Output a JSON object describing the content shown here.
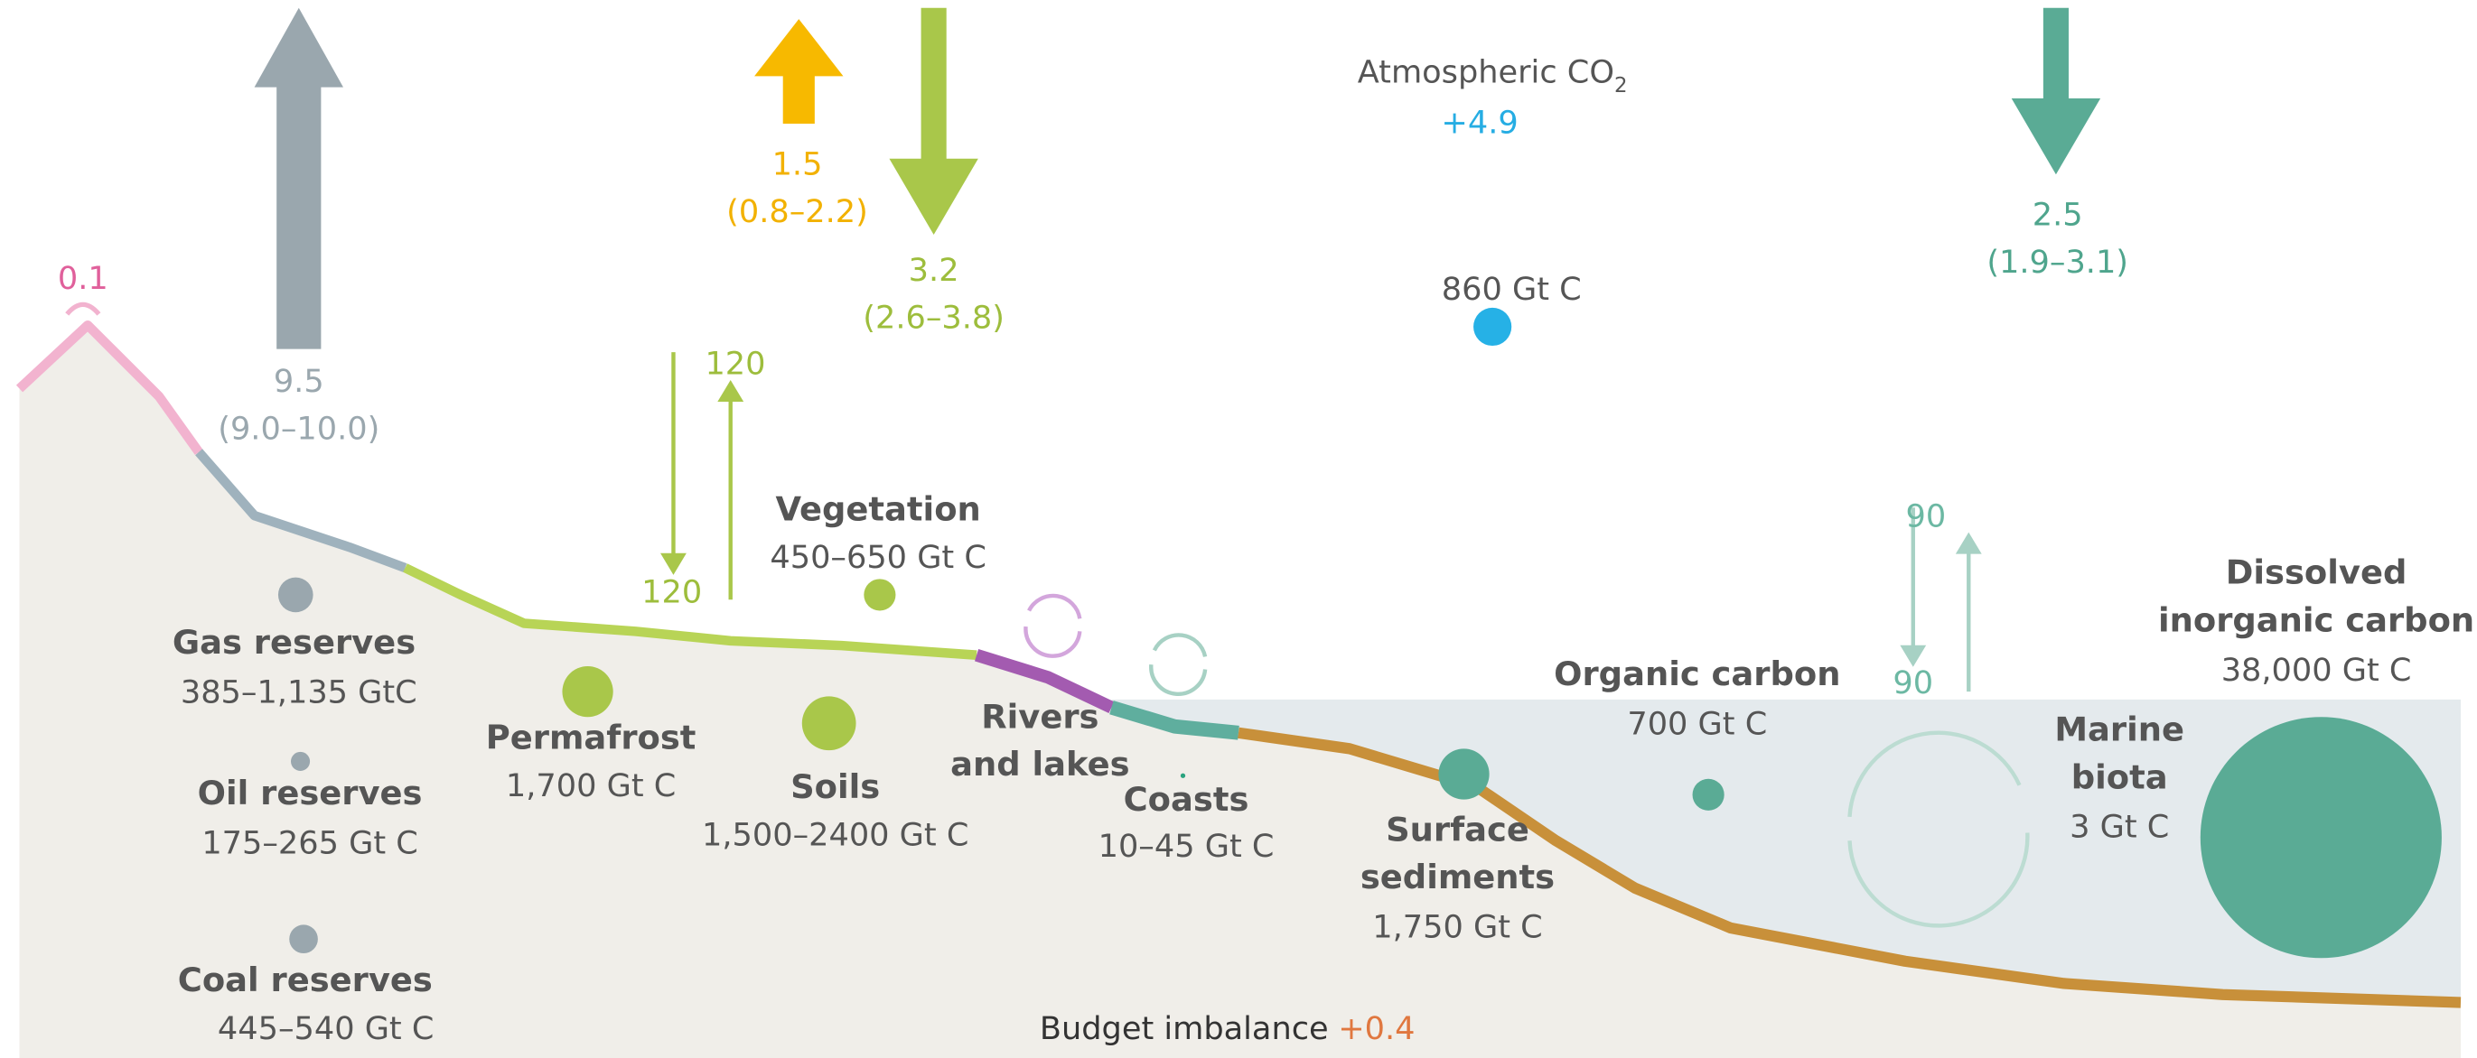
{
  "volcano": {
    "flux": "0.1"
  },
  "fossil_fuels": {
    "flux": "9.5",
    "range": "(9.0–10.0)"
  },
  "land_use": {
    "flux": "1.5",
    "range": "(0.8–2.2)"
  },
  "land_sink": {
    "flux": "3.2",
    "range": "(2.6–3.8)"
  },
  "atmosphere": {
    "title": "Atmospheric CO",
    "title_sub": "2",
    "growth": "+4.9",
    "stock": "860 Gt C"
  },
  "ocean_sink": {
    "flux": "2.5",
    "range": "(1.9–3.1)"
  },
  "land_exchange": {
    "down": "120",
    "up": "120"
  },
  "ocean_exchange": {
    "down": "90",
    "up": "90"
  },
  "stocks": {
    "vegetation": {
      "name": "Vegetation",
      "value": "450–650 Gt C"
    },
    "gas": {
      "name": "Gas reserves",
      "value": "385–1,135 GtC"
    },
    "oil": {
      "name": "Oil reserves",
      "value": "175–265 Gt C"
    },
    "coal": {
      "name": "Coal reserves",
      "value": "445–540 Gt C"
    },
    "permafrost": {
      "name": "Permafrost",
      "value": "1,700 Gt C"
    },
    "soils": {
      "name": "Soils",
      "value": "1,500–2400 Gt C"
    },
    "rivers": {
      "name": [
        "Rivers",
        "and lakes"
      ]
    },
    "coasts": {
      "name": "Coasts",
      "value": "10–45 Gt C"
    },
    "sediments": {
      "name": [
        "Surface",
        "sediments"
      ],
      "value": "1,750 Gt C"
    },
    "organic": {
      "name": "Organic carbon",
      "value": "700 Gt C"
    },
    "marine_biota": {
      "name": [
        "Marine",
        "biota"
      ],
      "value": "3 Gt C"
    },
    "dic": {
      "name": [
        "Dissolved",
        "inorganic carbon"
      ],
      "value": "38,000 Gt C"
    }
  },
  "budget": {
    "label": "Budget imbalance",
    "value": "+0.4"
  }
}
